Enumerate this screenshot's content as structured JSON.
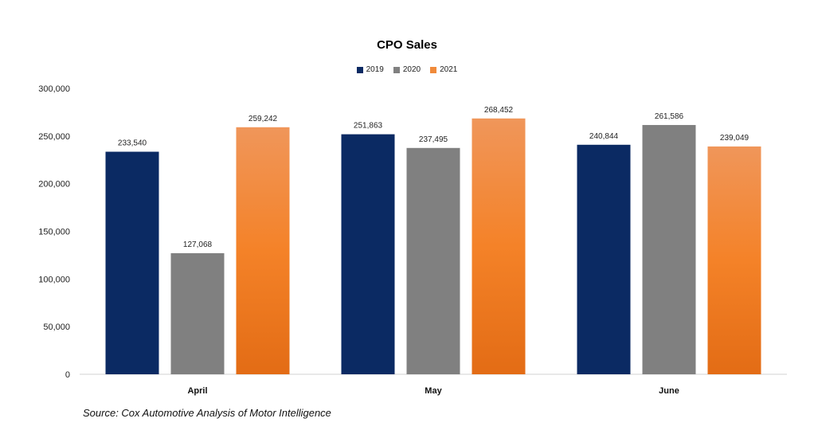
{
  "chart_data": {
    "type": "bar",
    "title": "CPO Sales",
    "categories": [
      "April",
      "May",
      "June"
    ],
    "series": [
      {
        "name": "2019",
        "values": [
          233540,
          251863,
          240844
        ],
        "color": "#0b2a63"
      },
      {
        "name": "2020",
        "values": [
          127068,
          237495,
          261586
        ],
        "color": "#808080"
      },
      {
        "name": "2021",
        "values": [
          259242,
          268452,
          239049
        ],
        "color": "#f08a3a"
      }
    ],
    "data_labels": [
      [
        "233,540",
        "251,863",
        "240,844"
      ],
      [
        "127,068",
        "237,495",
        "261,586"
      ],
      [
        "259,242",
        "268,452",
        "239,049"
      ]
    ],
    "ylim": [
      0,
      300000
    ],
    "yticks": [
      0,
      50000,
      100000,
      150000,
      200000,
      250000,
      300000
    ],
    "ytick_labels": [
      "0",
      "50,000",
      "100,000",
      "150,000",
      "200,000",
      "250,000",
      "300,000"
    ],
    "legend_position": "top-center",
    "grid": false
  },
  "source": "Source: Cox Automotive Analysis of Motor Intelligence"
}
